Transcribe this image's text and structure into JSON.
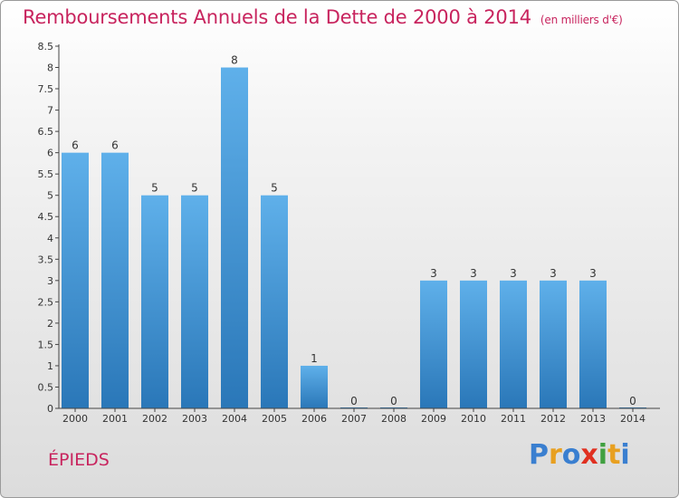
{
  "header": {
    "title": "Remboursements Annuels de la Dette de 2000 à 2014",
    "unit": "(en milliers d'€)"
  },
  "footer": {
    "commune": "ÉPIEDS",
    "logo_letters": [
      "P",
      "r",
      "o",
      "x",
      "i",
      "t",
      "i"
    ],
    "logo_colors": [
      "#3a7fd0",
      "#e8a020",
      "#3a7fd0",
      "#e03020",
      "#40a040",
      "#e8a020",
      "#3a7fd0"
    ]
  },
  "colors": {
    "title": "#c8245e",
    "bar_top": "#5fb0ea",
    "bar_bottom": "#2a77b8",
    "axis": "#333333"
  },
  "chart_data": {
    "type": "bar",
    "title": "Remboursements Annuels de la Dette de 2000 à 2014",
    "categories": [
      "2000",
      "2001",
      "2002",
      "2003",
      "2004",
      "2005",
      "2006",
      "2007",
      "2008",
      "2009",
      "2010",
      "2011",
      "2012",
      "2013",
      "2014"
    ],
    "values": [
      6,
      6,
      5,
      5,
      8,
      5,
      1,
      0,
      0,
      3,
      3,
      3,
      3,
      3,
      0
    ],
    "ylim": [
      0,
      8.5
    ],
    "yticks": [
      0,
      0.5,
      1,
      1.5,
      2,
      2.5,
      3,
      3.5,
      4,
      4.5,
      5,
      5.5,
      6,
      6.5,
      7,
      7.5,
      8,
      8.5
    ],
    "ytick_labels": [
      "0",
      "0.5",
      "1",
      "1.5",
      "2",
      "2.5",
      "3",
      "3.5",
      "4",
      "4.5",
      "5",
      "5.5",
      "6",
      "6.5",
      "7",
      "7.5",
      "8",
      "8.5"
    ],
    "xlabel": "",
    "ylabel": "",
    "grid": false
  }
}
